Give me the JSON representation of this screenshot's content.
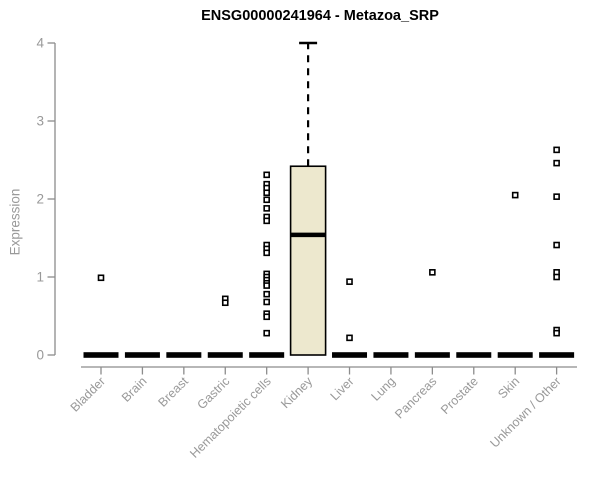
{
  "chart_data": {
    "type": "boxplot",
    "title": "ENSG00000241964 - Metazoa_SRP",
    "xlabel": "",
    "ylabel": "Expression",
    "ylim": [
      0,
      4
    ],
    "yticks": [
      "0",
      "1",
      "2",
      "3",
      "4"
    ],
    "grid": false,
    "legend": false,
    "categories": [
      "Bladder",
      "Brain",
      "Breast",
      "Gastric",
      "Hematopoietic cells",
      "Kidney",
      "Liver",
      "Lung",
      "Pancreas",
      "Prostate",
      "Skin",
      "Unknown / Other"
    ],
    "boxes": [
      {
        "category": "Bladder",
        "q1": 0,
        "median": 0,
        "q3": 0,
        "whisker_low": 0,
        "whisker_high": 0,
        "outliers": [
          0.99
        ]
      },
      {
        "category": "Brain",
        "q1": 0,
        "median": 0,
        "q3": 0,
        "whisker_low": 0,
        "whisker_high": 0,
        "outliers": []
      },
      {
        "category": "Breast",
        "q1": 0,
        "median": 0,
        "q3": 0,
        "whisker_low": 0,
        "whisker_high": 0,
        "outliers": []
      },
      {
        "category": "Gastric",
        "q1": 0,
        "median": 0,
        "q3": 0,
        "whisker_low": 0,
        "whisker_high": 0,
        "outliers": [
          0.72,
          0.67
        ]
      },
      {
        "category": "Hematopoietic cells",
        "q1": 0,
        "median": 0,
        "q3": 0,
        "whisker_low": 0,
        "whisker_high": 0,
        "outliers": [
          2.31,
          2.19,
          2.14,
          2.08,
          1.99,
          1.88,
          1.77,
          1.72,
          1.41,
          1.36,
          1.31,
          1.04,
          1.0,
          0.96,
          0.92,
          0.89,
          0.78,
          0.68,
          0.53,
          0.49,
          0.28
        ]
      },
      {
        "category": "Kidney",
        "q1": 0,
        "median": 1.54,
        "q3": 2.42,
        "whisker_low": 0,
        "whisker_high": 4.0,
        "outliers": []
      },
      {
        "category": "Liver",
        "q1": 0,
        "median": 0,
        "q3": 0,
        "whisker_low": 0,
        "whisker_high": 0,
        "outliers": [
          0.94,
          0.22
        ]
      },
      {
        "category": "Lung",
        "q1": 0,
        "median": 0,
        "q3": 0,
        "whisker_low": 0,
        "whisker_high": 0,
        "outliers": []
      },
      {
        "category": "Pancreas",
        "q1": 0,
        "median": 0,
        "q3": 0,
        "whisker_low": 0,
        "whisker_high": 0,
        "outliers": [
          1.06
        ]
      },
      {
        "category": "Prostate",
        "q1": 0,
        "median": 0,
        "q3": 0,
        "whisker_low": 0,
        "whisker_high": 0,
        "outliers": []
      },
      {
        "category": "Skin",
        "q1": 0,
        "median": 0,
        "q3": 0,
        "whisker_low": 0,
        "whisker_high": 0,
        "outliers": [
          2.05
        ]
      },
      {
        "category": "Unknown / Other",
        "q1": 0,
        "median": 0,
        "q3": 0,
        "whisker_low": 0,
        "whisker_high": 0,
        "outliers": [
          2.63,
          2.46,
          2.03,
          1.41,
          1.06,
          1.0,
          0.32,
          0.28
        ]
      }
    ],
    "colors": {
      "box_fill": "#ede8ce",
      "box_border": "#000000",
      "median": "#000000",
      "whisker": "#000000",
      "outlier_stroke": "#000000",
      "outlier_fill": "#ffffff",
      "axis_line": "#8c8c8c",
      "tick_label": "#999999",
      "title": "#000000"
    }
  }
}
